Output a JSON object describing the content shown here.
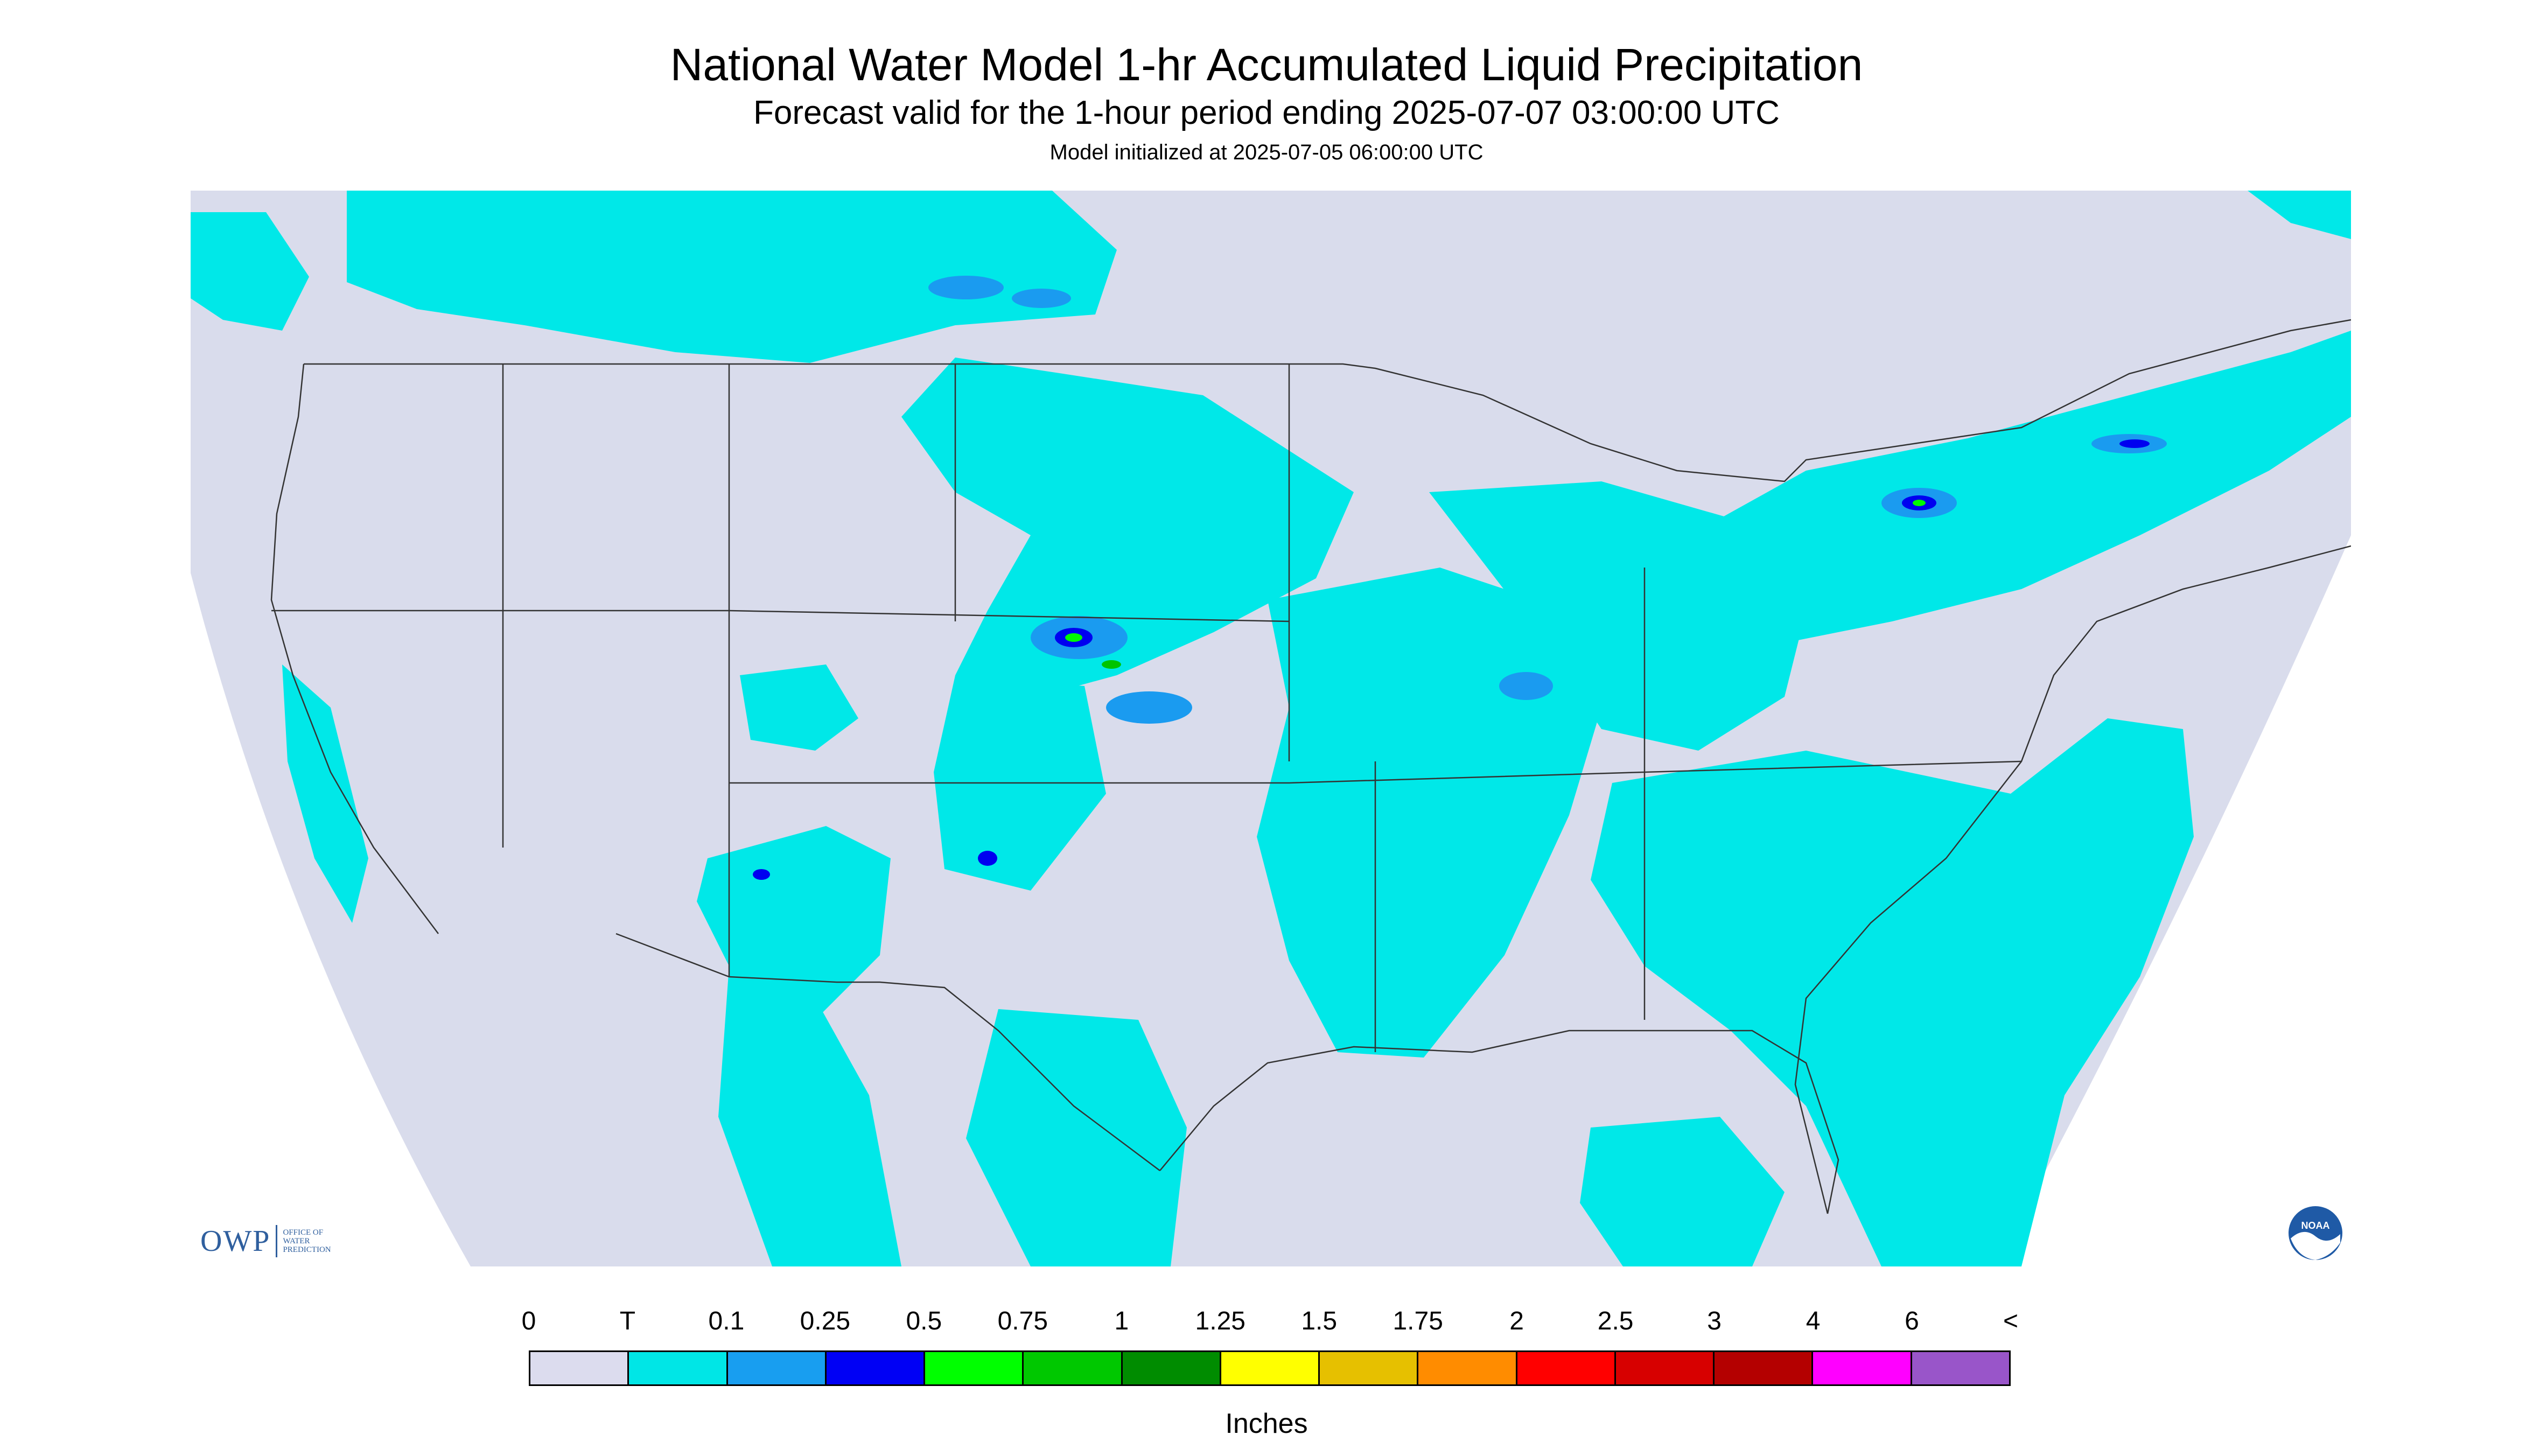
{
  "header": {
    "title": "National Water Model 1-hr Accumulated Liquid Precipitation",
    "subtitle": "Forecast valid for the 1-hour period ending 2025-07-07 03:00:00 UTC",
    "init": "Model initialized at 2025-07-05 06:00:00 UTC"
  },
  "logos": {
    "owp_letters": "OWP",
    "owp_text_lines": [
      "OFFICE OF",
      "WATER",
      "PREDICTION"
    ],
    "noaa_text": "NOAA"
  },
  "map": {
    "background_color": "#d9dcec",
    "outside_domain_color": "#ffffff",
    "line_color": "#333333",
    "precip_colors": {
      "T": "#00e8e8",
      "0.1": "#1a9bf0",
      "0.25": "#0000f0",
      "0.5": "#00fb00",
      "0.75": "#00c400"
    }
  },
  "colorbar": {
    "labels": [
      "0",
      "T",
      "0.1",
      "0.25",
      "0.5",
      "0.75",
      "1",
      "1.25",
      "1.5",
      "1.75",
      "2",
      "2.5",
      "3",
      "4",
      "6",
      "<"
    ],
    "colors": [
      "#dcdcee",
      "#00e6e6",
      "#189ef0",
      "#0000f5",
      "#00ff00",
      "#00c800",
      "#008c00",
      "#ffff00",
      "#e6c000",
      "#ff8c00",
      "#ff0000",
      "#d70000",
      "#b40000",
      "#ff00ff",
      "#9955c9"
    ],
    "units": "Inches"
  }
}
